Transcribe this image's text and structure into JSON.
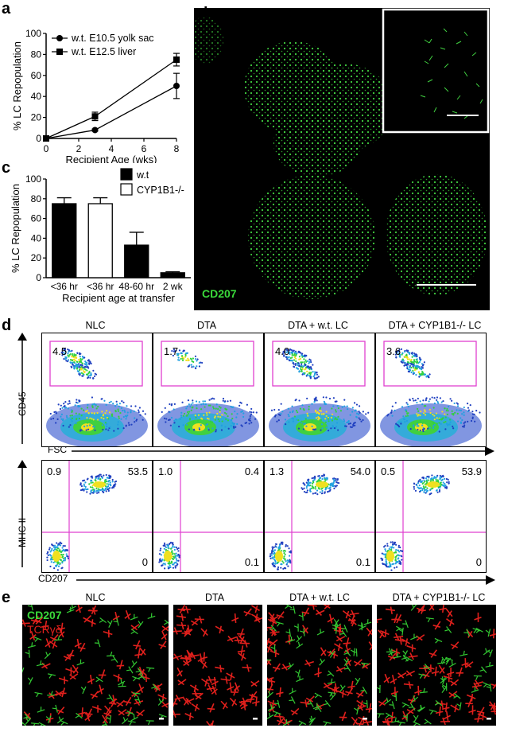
{
  "panels": {
    "a": "a",
    "b": "b",
    "c": "c",
    "d": "d",
    "e": "e"
  },
  "colors": {
    "green": "#32c832",
    "red": "#e0201c",
    "magenta": "#e040d0",
    "black": "#000000"
  },
  "chart_a": {
    "type": "line",
    "xlabel": "Recipient Age (wks)",
    "ylabel": "% LC Repopulation",
    "xlim": [
      0,
      8
    ],
    "ylim": [
      0,
      100
    ],
    "xticks": [
      "0",
      "2",
      "4",
      "6",
      "8"
    ],
    "yticks": [
      "0",
      "20",
      "40",
      "60",
      "80",
      "100"
    ],
    "legend_placement": "top-left"
  },
  "chart_c": {
    "type": "bar",
    "xlabel": "Recipient age at transfer",
    "ylabel": "% LC Repopulation",
    "ylim": [
      0,
      100
    ],
    "yticks": [
      "0",
      "20",
      "40",
      "60",
      "80",
      "100"
    ],
    "legend_placement": "top-right"
  },
  "chart_data": [
    {
      "type": "line",
      "xlabel": "Recipient Age (wks)",
      "ylabel": "% LC Repopulation",
      "xlim": [
        0,
        8
      ],
      "ylim": [
        0,
        100
      ],
      "series": [
        {
          "name": "w.t. E10.5 yolk sac",
          "marker": "circle",
          "x": [
            0,
            3,
            8
          ],
          "y": [
            0,
            8,
            50
          ],
          "err": [
            0,
            1,
            12
          ]
        },
        {
          "name": "w.t. E12.5 liver",
          "marker": "square",
          "x": [
            0,
            3,
            8
          ],
          "y": [
            0,
            21,
            75
          ],
          "err": [
            0,
            4,
            6
          ]
        }
      ]
    },
    {
      "type": "bar",
      "xlabel": "Recipient age at transfer",
      "ylabel": "% LC Repopulation",
      "ylim": [
        0,
        100
      ],
      "categories": [
        "<36 hr",
        "<36 hr",
        "48-60 hr",
        "2 wk"
      ],
      "values": [
        75,
        75,
        33,
        5
      ],
      "errors": [
        6,
        6,
        13,
        1
      ],
      "groups": [
        "w.t",
        "CYP1B1-/-",
        "w.t",
        "w.t"
      ],
      "legend": [
        "w.t",
        "CYP1B1-/-"
      ]
    }
  ],
  "panel_b": {
    "stain": "CD207"
  },
  "panel_d": {
    "columns": [
      "NLC",
      "DTA",
      "DTA + w.t. LC",
      "DTA + CYP1B1-/- LC"
    ],
    "top_ylabel": "CD45",
    "top_xlabel": "FSC",
    "top_gates": [
      "4.5",
      "1.7",
      "4.0",
      "3.6"
    ],
    "bottom_ylabel": "MHC II",
    "bottom_xlabel": "CD207",
    "quadrants": [
      {
        "ul": "0.9",
        "ur": "53.5",
        "lr": "0"
      },
      {
        "ul": "1.0",
        "ur": "0.4",
        "lr": "0.1"
      },
      {
        "ul": "1.3",
        "ur": "54.0",
        "lr": "0.1"
      },
      {
        "ul": "0.5",
        "ur": "53.9",
        "lr": "0"
      }
    ]
  },
  "panel_e": {
    "columns": [
      "NLC",
      "DTA",
      "DTA + w.t. LC",
      "DTA + CYP1B1-/- LC"
    ],
    "stain1": "CD207",
    "stain2": "TCRγδ"
  }
}
